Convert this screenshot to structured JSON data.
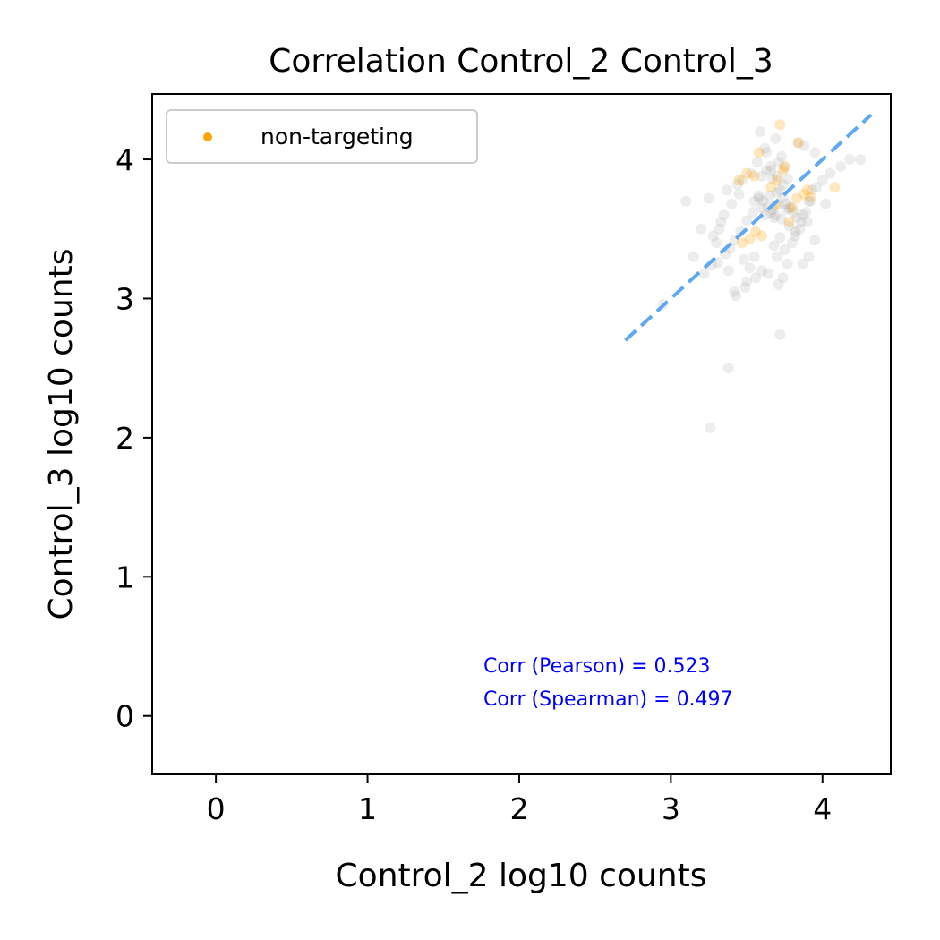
{
  "chart_data": {
    "type": "scatter",
    "title": "Correlation Control_2 Control_3",
    "xlabel": "Control_2 log10 counts",
    "ylabel": "Control_3 log10 counts",
    "xlim": [
      -0.42,
      4.45
    ],
    "ylim": [
      -0.42,
      4.47
    ],
    "xticks": [
      0,
      1,
      2,
      3,
      4
    ],
    "yticks": [
      0,
      1,
      2,
      3,
      4
    ],
    "grid": false,
    "legend": {
      "position": "top-left",
      "entries": [
        {
          "label": "non-targeting",
          "color": "#ffa500"
        }
      ]
    },
    "fit_line": {
      "style": "dashed",
      "color": "#5fa9f2",
      "x": [
        2.7,
        4.32
      ],
      "y": [
        2.7,
        4.32
      ]
    },
    "annotations": [
      {
        "text": "Corr (Pearson) = 0.523",
        "color": "#0000ff"
      },
      {
        "text": "Corr (Spearman) = 0.497",
        "color": "#0000ff"
      }
    ],
    "series": [
      {
        "name": "",
        "color": "#9a9a9a",
        "x": [
          3.26,
          3.38,
          2.95,
          3.72,
          3.42,
          3.5,
          3.6,
          3.7,
          3.75,
          3.8,
          3.85,
          3.9,
          3.62,
          3.66,
          3.68,
          3.73,
          3.78,
          3.55,
          3.58,
          3.45,
          3.4,
          3.35,
          3.32,
          3.28,
          3.3,
          3.48,
          3.52,
          3.64,
          3.71,
          3.74,
          3.77,
          3.82,
          3.87,
          3.92,
          3.96,
          4.0,
          4.05,
          4.12,
          4.18,
          4.25,
          3.95,
          3.88,
          3.84,
          3.69,
          3.63,
          3.57,
          3.53,
          3.47,
          3.44,
          3.37,
          3.33,
          3.25,
          3.2,
          3.1,
          3.15,
          3.38,
          3.55,
          3.6,
          3.65,
          3.7,
          3.72,
          3.74,
          3.76,
          3.79,
          3.81,
          3.83,
          3.86,
          3.89,
          3.91,
          3.93,
          3.6,
          3.66,
          3.71,
          3.73,
          3.75,
          3.77,
          3.69,
          3.67,
          3.64,
          3.61,
          3.58,
          3.54,
          3.5,
          3.46,
          3.42,
          3.39,
          3.36,
          3.31,
          3.27,
          3.22,
          3.68,
          3.72,
          3.74,
          3.7,
          3.66,
          3.62,
          3.78,
          3.82,
          3.56,
          3.49,
          3.43,
          3.95,
          4.02,
          3.87,
          3.91,
          3.59,
          3.63,
          3.67,
          3.71,
          3.76
        ],
        "y": [
          2.07,
          2.5,
          2.96,
          2.74,
          3.05,
          3.12,
          3.2,
          3.3,
          3.35,
          3.4,
          3.5,
          3.55,
          3.6,
          3.62,
          3.58,
          3.57,
          3.65,
          3.7,
          3.72,
          3.75,
          3.68,
          3.6,
          3.5,
          3.45,
          3.4,
          3.28,
          3.22,
          3.18,
          3.1,
          3.15,
          3.25,
          3.45,
          3.6,
          3.7,
          3.8,
          3.85,
          3.9,
          3.95,
          4.0,
          4.0,
          4.05,
          4.1,
          4.12,
          4.15,
          4.05,
          3.98,
          3.9,
          3.85,
          3.82,
          3.78,
          3.55,
          3.72,
          3.5,
          3.7,
          3.3,
          3.2,
          3.3,
          3.65,
          3.74,
          3.76,
          3.78,
          3.72,
          3.68,
          3.66,
          3.62,
          3.58,
          3.55,
          3.62,
          3.7,
          3.78,
          3.88,
          3.92,
          3.98,
          4.02,
          3.94,
          3.86,
          3.6,
          3.64,
          3.66,
          3.7,
          3.74,
          3.62,
          3.56,
          3.48,
          3.42,
          3.36,
          3.32,
          3.26,
          3.24,
          3.18,
          3.38,
          3.44,
          3.82,
          3.88,
          3.95,
          4.08,
          3.52,
          3.48,
          3.15,
          3.08,
          3.02,
          3.42,
          3.68,
          3.25,
          3.3,
          4.2,
          3.92,
          3.86,
          3.68,
          3.64
        ]
      },
      {
        "name": "non-targeting",
        "color": "#ffa500",
        "x": [
          3.52,
          3.6,
          3.56,
          3.47,
          3.66,
          3.7,
          3.75,
          3.8,
          3.83,
          3.88,
          3.55,
          3.45,
          3.72,
          3.84,
          3.58,
          3.92,
          3.9,
          3.74,
          3.69,
          3.5,
          4.08,
          3.78
        ],
        "y": [
          3.43,
          3.45,
          3.48,
          3.4,
          3.8,
          3.85,
          3.95,
          3.65,
          3.72,
          3.75,
          3.88,
          3.85,
          4.25,
          4.12,
          4.05,
          3.73,
          3.78,
          3.92,
          3.67,
          3.9,
          3.8,
          3.55
        ]
      }
    ]
  }
}
